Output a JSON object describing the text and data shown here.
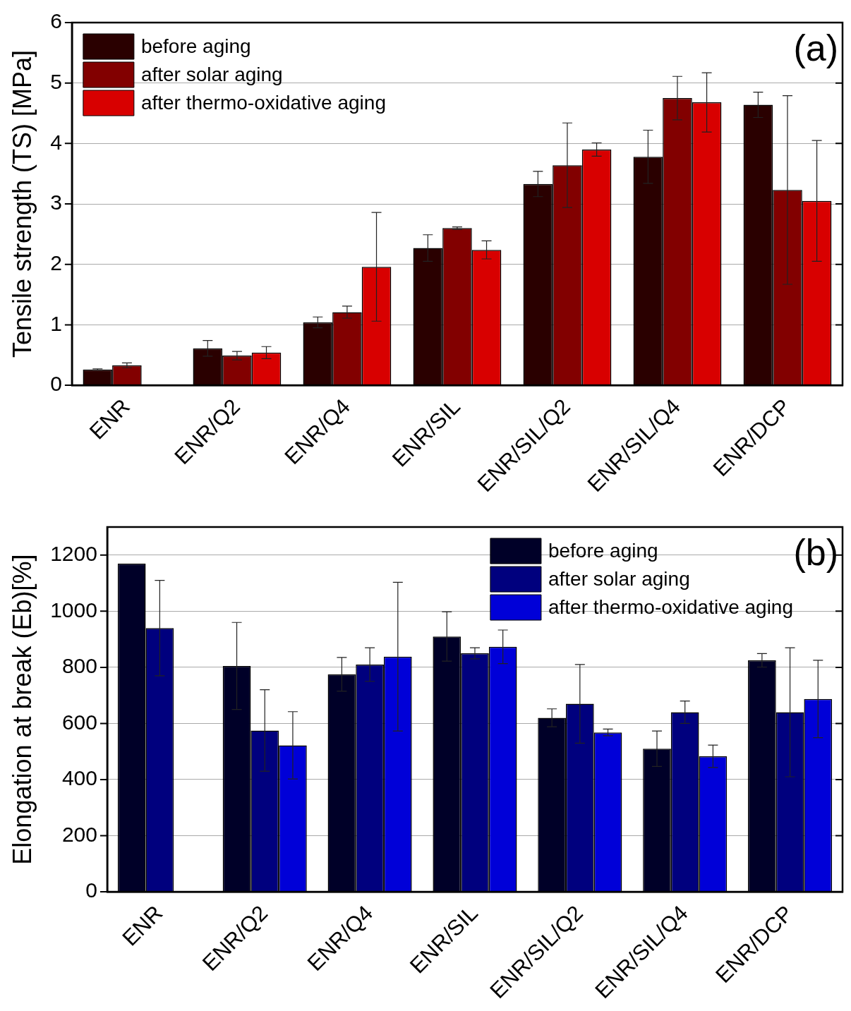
{
  "chart_data": [
    {
      "type": "bar",
      "ylabel": "Tensile strength (TS) [MPa]",
      "categories": [
        "ENR",
        "ENR/Q2",
        "ENR/Q4",
        "ENR/SIL",
        "ENR/SIL/Q2",
        "ENR/SIL/Q4",
        "ENR/DCP"
      ],
      "series": [
        {
          "name": "before aging",
          "color": "#2a0000",
          "values": [
            0.26,
            0.61,
            1.04,
            2.27,
            3.33,
            3.78,
            4.64
          ],
          "errors": [
            0.01,
            0.13,
            0.09,
            0.22,
            0.21,
            0.44,
            0.21
          ]
        },
        {
          "name": "after solar aging",
          "color": "#820000",
          "values": [
            0.33,
            0.49,
            1.21,
            2.6,
            3.64,
            4.75,
            3.23
          ],
          "errors": [
            0.04,
            0.07,
            0.1,
            0.02,
            0.7,
            0.36,
            1.56
          ]
        },
        {
          "name": "after thermo-oxidative aging",
          "color": "#d80000",
          "values": [
            null,
            0.54,
            1.96,
            2.24,
            3.9,
            4.68,
            3.05
          ],
          "errors": [
            null,
            0.1,
            0.9,
            0.15,
            0.11,
            0.49,
            1.0
          ]
        }
      ],
      "ylim": [
        0,
        6
      ],
      "yticks": [
        0,
        1,
        2,
        3,
        4,
        5,
        6
      ],
      "grid": "y",
      "legend": "top left",
      "annotations": [
        "(a)"
      ]
    },
    {
      "type": "bar",
      "ylabel": "Elongation at break (Eb)[%]",
      "categories": [
        "ENR",
        "ENR/Q2",
        "ENR/Q4",
        "ENR/SIL",
        "ENR/SIL/Q2",
        "ENR/SIL/Q4",
        "ENR/DCP"
      ],
      "series": [
        {
          "name": "before aging",
          "color": "#000028",
          "values": [
            1170,
            805,
            775,
            910,
            620,
            510,
            825
          ],
          "errors": [
            null,
            155,
            60,
            88,
            32,
            63,
            24
          ]
        },
        {
          "name": "after solar aging",
          "color": "#00007e",
          "values": [
            940,
            575,
            810,
            850,
            670,
            640,
            640
          ],
          "errors": [
            170,
            145,
            60,
            20,
            140,
            40,
            230
          ]
        },
        {
          "name": "after thermo-oxidative aging",
          "color": "#0000d8",
          "values": [
            null,
            522,
            838,
            873,
            568,
            483,
            687
          ],
          "errors": [
            null,
            120,
            265,
            60,
            12,
            40,
            138
          ]
        }
      ],
      "ylim": [
        0,
        1300
      ],
      "yticks": [
        0,
        200,
        400,
        600,
        800,
        1000,
        1200
      ],
      "grid": "y",
      "legend": "top right",
      "annotations": [
        "(b)"
      ]
    }
  ]
}
